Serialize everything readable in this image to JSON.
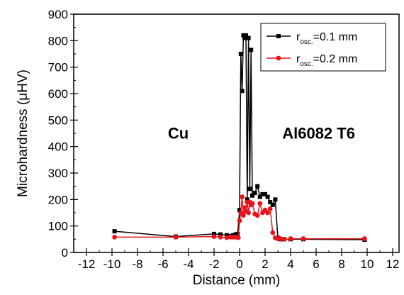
{
  "chart_data": {
    "type": "line",
    "xlabel": "Distance (mm)",
    "ylabel": "Microhardness (μHV)",
    "xlim": [
      -13,
      12.5
    ],
    "ylim": [
      0,
      900
    ],
    "xticks": [
      -12,
      -10,
      -8,
      -6,
      -4,
      -2,
      0,
      2,
      4,
      6,
      8,
      10,
      12
    ],
    "yticks": [
      0,
      100,
      200,
      300,
      400,
      500,
      600,
      700,
      800,
      900
    ],
    "grid": false,
    "legend_position": "top-right",
    "annotations": [
      {
        "text": "Cu",
        "x": -4.8,
        "y": 430
      },
      {
        "text": "Al6082 T6",
        "x": 6.2,
        "y": 430
      }
    ],
    "series": [
      {
        "name_main": "r",
        "name_sub": "osc.",
        "name_rest": "=0.1 mm",
        "color": "#000000",
        "marker": "square",
        "x": [
          -9.8,
          -5,
          -2,
          -1.5,
          -1,
          -0.7,
          -0.5,
          -0.3,
          -0.15,
          0,
          0.1,
          0.2,
          0.3,
          0.4,
          0.5,
          0.6,
          0.7,
          0.8,
          0.9,
          1.0,
          1.2,
          1.4,
          1.6,
          1.8,
          2.0,
          2.2,
          2.4,
          2.6,
          2.8,
          3.0,
          3.2,
          3.5,
          4.0,
          5.0,
          9.8
        ],
        "y": [
          80,
          60,
          70,
          68,
          65,
          62,
          65,
          68,
          70,
          160,
          750,
          610,
          820,
          810,
          820,
          200,
          810,
          240,
          765,
          215,
          225,
          250,
          210,
          220,
          220,
          210,
          190,
          180,
          200,
          55,
          50,
          50,
          50,
          50,
          48
        ]
      },
      {
        "name_main": "r",
        "name_sub": "osc.",
        "name_rest": "=0.2 mm",
        "color": "#e8141c",
        "marker": "circle",
        "x": [
          -9.8,
          -5,
          -2,
          -1.5,
          -1,
          -0.7,
          -0.5,
          -0.3,
          -0.1,
          0,
          0.1,
          0.2,
          0.3,
          0.4,
          0.5,
          0.6,
          0.7,
          0.8,
          0.9,
          1.0,
          1.2,
          1.4,
          1.6,
          1.8,
          2.0,
          2.2,
          2.4,
          2.6,
          2.8,
          3.0,
          3.2,
          3.5,
          4.0,
          5.0,
          9.8
        ],
        "y": [
          58,
          58,
          60,
          58,
          56,
          58,
          58,
          58,
          56,
          120,
          150,
          210,
          140,
          170,
          155,
          190,
          150,
          190,
          180,
          185,
          145,
          140,
          185,
          150,
          160,
          150,
          165,
          75,
          55,
          52,
          52,
          50,
          52,
          52,
          52
        ]
      }
    ]
  }
}
